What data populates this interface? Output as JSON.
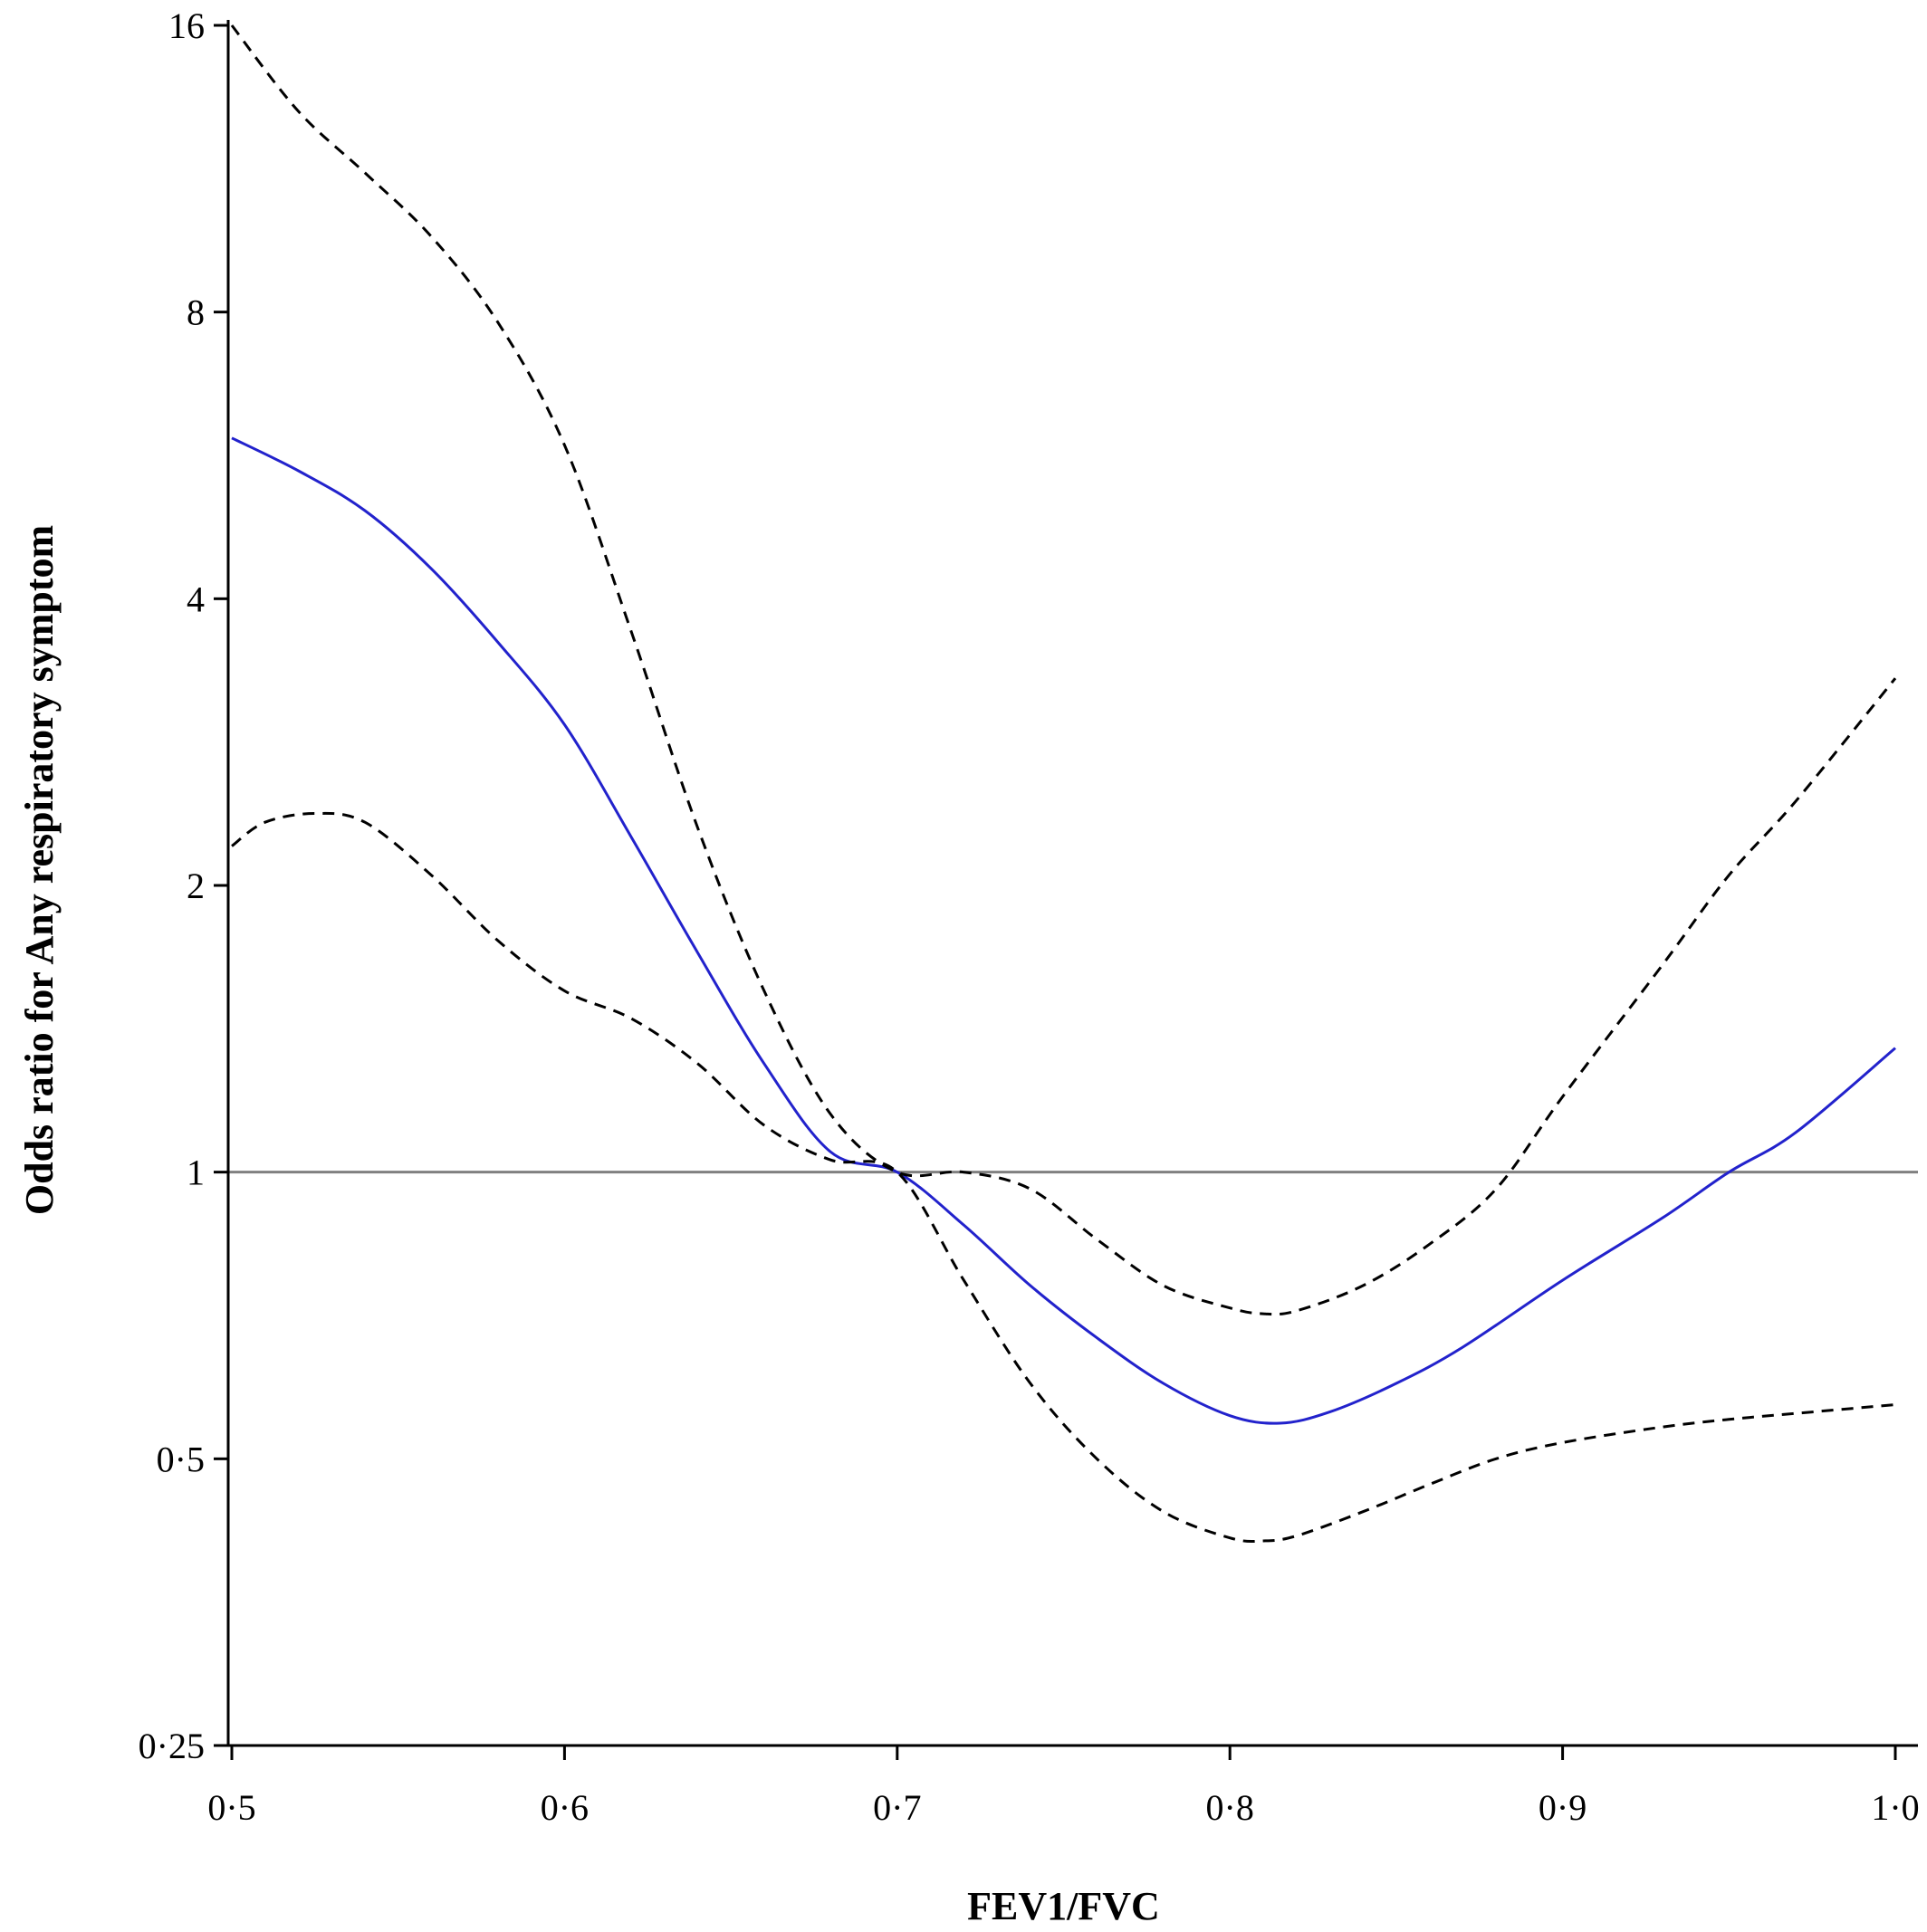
{
  "chart_data": {
    "type": "line",
    "title": "",
    "xlabel": "FEV1/FVC",
    "ylabel": "Odds ratio for Any respiratory symptom",
    "xlim": [
      0.5,
      1.0
    ],
    "ylim": [
      0.25,
      16
    ],
    "y_scale": "log2",
    "grid": false,
    "legend": "none",
    "x_ticks": [
      {
        "value": 0.5,
        "label": "0·5"
      },
      {
        "value": 0.6,
        "label": "0·6"
      },
      {
        "value": 0.7,
        "label": "0·7"
      },
      {
        "value": 0.8,
        "label": "0·8"
      },
      {
        "value": 0.9,
        "label": "0·9"
      },
      {
        "value": 1.0,
        "label": "1·0"
      }
    ],
    "y_ticks": [
      {
        "value": 0.25,
        "label": "0·25"
      },
      {
        "value": 0.5,
        "label": "0·5"
      },
      {
        "value": 1,
        "label": "1"
      },
      {
        "value": 2,
        "label": "2"
      },
      {
        "value": 4,
        "label": "4"
      },
      {
        "value": 8,
        "label": "8"
      },
      {
        "value": 16,
        "label": "16"
      }
    ],
    "reference_line": {
      "y": 1,
      "color": "#808080"
    },
    "series": [
      {
        "role": "estimate",
        "color": "#2222cc",
        "style": "solid",
        "x": [
          0.5,
          0.52,
          0.54,
          0.56,
          0.58,
          0.6,
          0.62,
          0.64,
          0.66,
          0.68,
          0.7,
          0.72,
          0.74,
          0.76,
          0.78,
          0.8,
          0.815,
          0.83,
          0.85,
          0.87,
          0.9,
          0.93,
          0.95,
          0.97,
          1.0
        ],
        "y": [
          5.9,
          5.45,
          4.95,
          4.3,
          3.6,
          2.95,
          2.25,
          1.7,
          1.3,
          1.05,
          1.0,
          0.88,
          0.76,
          0.67,
          0.6,
          0.555,
          0.545,
          0.56,
          0.6,
          0.655,
          0.77,
          0.895,
          1.0,
          1.1,
          1.35
        ]
      },
      {
        "role": "upper-ci",
        "color": "#000000",
        "style": "dashed",
        "x": [
          0.5,
          0.52,
          0.54,
          0.56,
          0.58,
          0.6,
          0.62,
          0.64,
          0.66,
          0.68,
          0.7,
          0.72,
          0.74,
          0.76,
          0.78,
          0.8,
          0.81,
          0.82,
          0.84,
          0.86,
          0.88,
          0.9,
          0.93,
          0.95,
          0.97,
          1.0
        ],
        "y": [
          16.0,
          13.0,
          11.2,
          9.6,
          7.8,
          5.8,
          3.7,
          2.3,
          1.55,
          1.15,
          1.0,
          1.0,
          0.96,
          0.85,
          0.76,
          0.72,
          0.71,
          0.715,
          0.76,
          0.84,
          0.96,
          1.2,
          1.65,
          2.05,
          2.45,
          3.3
        ]
      },
      {
        "role": "lower-ci",
        "color": "#000000",
        "style": "dashed",
        "x": [
          0.5,
          0.51,
          0.525,
          0.54,
          0.56,
          0.58,
          0.6,
          0.62,
          0.64,
          0.66,
          0.68,
          0.7,
          0.72,
          0.74,
          0.76,
          0.78,
          0.8,
          0.81,
          0.82,
          0.84,
          0.86,
          0.88,
          0.9,
          0.93,
          0.95,
          0.97,
          1.0
        ],
        "y": [
          2.2,
          2.33,
          2.38,
          2.33,
          2.05,
          1.75,
          1.55,
          1.45,
          1.3,
          1.12,
          1.03,
          1.0,
          0.77,
          0.6,
          0.5,
          0.44,
          0.413,
          0.41,
          0.415,
          0.44,
          0.47,
          0.5,
          0.52,
          0.54,
          0.55,
          0.558,
          0.57
        ]
      }
    ]
  }
}
